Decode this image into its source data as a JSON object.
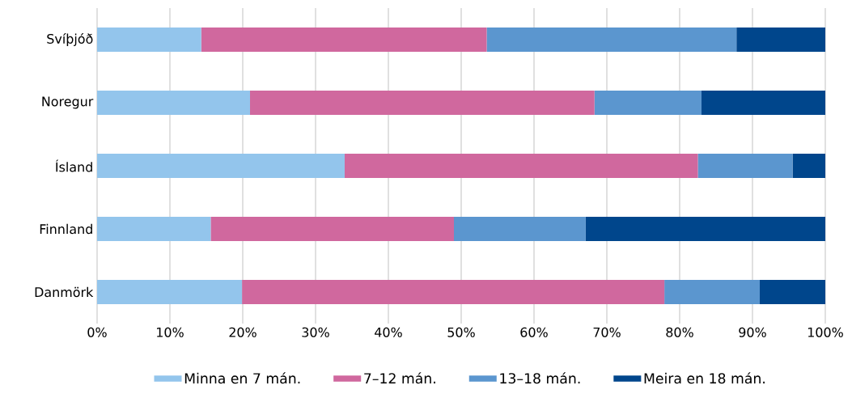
{
  "chart_data": {
    "type": "bar",
    "orientation": "horizontal",
    "stacked": true,
    "categories": [
      "Svíþjóð",
      "Noregur",
      "Ísland",
      "Finnland",
      "Danmörk"
    ],
    "series": [
      {
        "name": "Minna en 7 mán.",
        "color": "#93c5ec",
        "values": [
          14.3,
          21.0,
          34.0,
          15.6,
          19.9
        ]
      },
      {
        "name": "7–12 mán.",
        "color": "#d0689e",
        "values": [
          39.2,
          47.3,
          48.5,
          33.4,
          58.0
        ]
      },
      {
        "name": "13–18 mán.",
        "color": "#5b96cf",
        "values": [
          34.3,
          14.7,
          13.0,
          18.1,
          13.1
        ]
      },
      {
        "name": "Meira en 18 mán.",
        "color": "#00468c",
        "values": [
          12.2,
          17.0,
          4.5,
          32.9,
          9.0
        ]
      }
    ],
    "xlim": [
      0,
      100
    ],
    "xticks": [
      {
        "value": 0,
        "label": "0%"
      },
      {
        "value": 10,
        "label": "10%"
      },
      {
        "value": 20,
        "label": "20%"
      },
      {
        "value": 30,
        "label": "30%"
      },
      {
        "value": 40,
        "label": "40%"
      },
      {
        "value": 50,
        "label": "50%"
      },
      {
        "value": 60,
        "label": "60%"
      },
      {
        "value": 70,
        "label": "70%"
      },
      {
        "value": 80,
        "label": "80%"
      },
      {
        "value": 90,
        "label": "90%"
      },
      {
        "value": 100,
        "label": "100%"
      }
    ],
    "grid": "x",
    "legend": "bottom"
  }
}
